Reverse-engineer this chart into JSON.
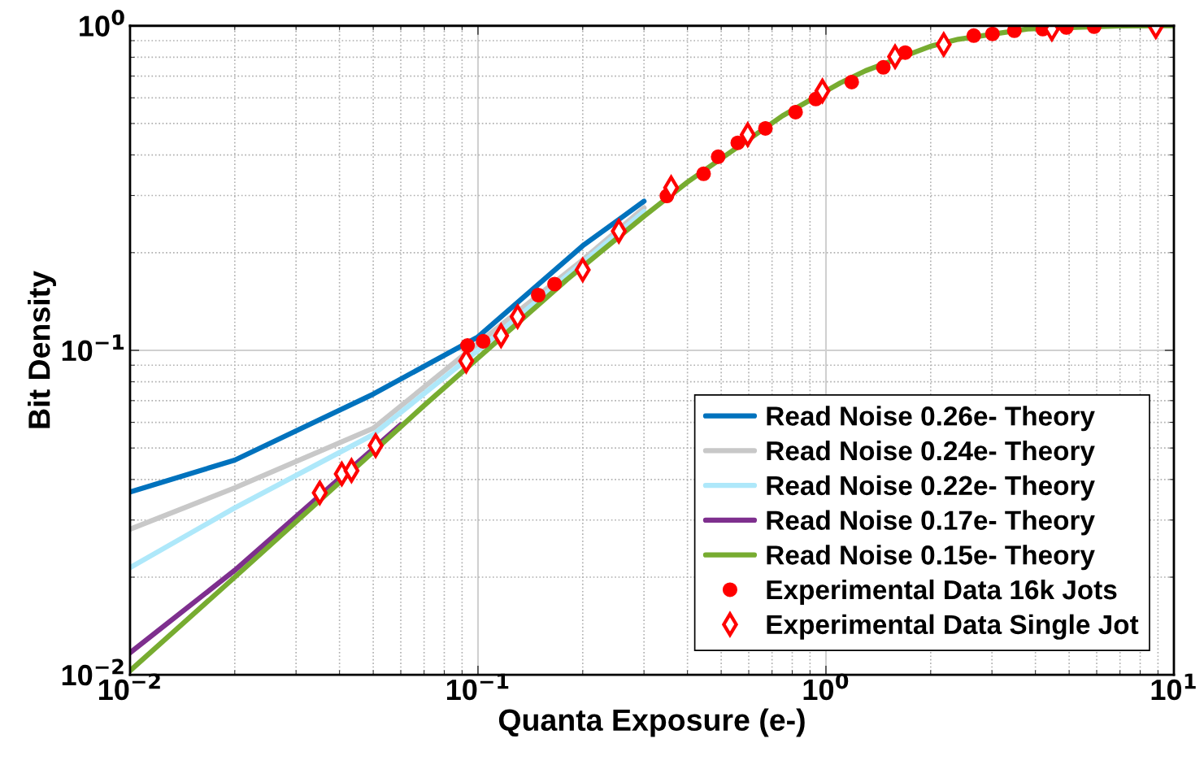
{
  "chart_data": {
    "type": "line",
    "xlabel": "Quanta Exposure (e-)",
    "ylabel": "Bit Density",
    "log": "xy",
    "grid": true,
    "legend": "bottom right",
    "xlim": [
      0.01,
      10
    ],
    "ylim": [
      0.01,
      1
    ],
    "xticks": [
      {
        "value": 0.01,
        "label": "10$^{−2}$"
      },
      {
        "value": 0.1,
        "label": "10$^{−1}$"
      },
      {
        "value": 1,
        "label": "10$^{0}$"
      },
      {
        "value": 10,
        "label": "10$^{1}$"
      }
    ],
    "yticks": [
      {
        "value": 0.01,
        "label": "10$^{−2}$"
      },
      {
        "value": 0.1,
        "label": "10$^{−1}$"
      },
      {
        "value": 1,
        "label": "10$^{0}$"
      }
    ],
    "series": [
      {
        "name": "Read Noise 0.26e- Theory",
        "marker": "none",
        "color": "#0072bd",
        "x": [
          0.01,
          0.02,
          0.05,
          0.1,
          0.2,
          0.3
        ],
        "values": [
          0.0366,
          0.0459,
          0.0733,
          0.11,
          0.21,
          0.288
        ]
      },
      {
        "name": "Read Noise 0.24e- Theory",
        "marker": "none",
        "color": "#c8c8c8",
        "x": [
          0.01,
          0.02,
          0.05,
          0.1,
          0.2,
          0.3
        ],
        "values": [
          0.0281,
          0.0377,
          0.0575,
          0.105,
          0.19,
          0.275
        ]
      },
      {
        "name": "Read Noise 0.22e- Theory",
        "marker": "none",
        "color": "#aee8fa",
        "x": [
          0.01,
          0.02,
          0.05,
          0.1,
          0.3
        ],
        "values": [
          0.0214,
          0.0327,
          0.055,
          0.1,
          0.268
        ]
      },
      {
        "name": "Read Noise 0.17e- Theory",
        "marker": "none",
        "color": "#7e2f8e",
        "x": [
          0.01,
          0.02,
          0.06
        ],
        "values": [
          0.0117,
          0.021,
          0.059
        ]
      },
      {
        "name": "Read Noise 0.15e- Theory",
        "marker": "none",
        "color": "#77ac30",
        "x": [
          0.01,
          0.02,
          0.03,
          0.07,
          0.18,
          0.3,
          0.4,
          0.75,
          1.1,
          1.3,
          2,
          2.4,
          3.8,
          7,
          10
        ],
        "values": [
          0.0103,
          0.02,
          0.0296,
          0.0676,
          0.165,
          0.259,
          0.33,
          0.528,
          0.667,
          0.727,
          0.865,
          0.909,
          0.978,
          0.999,
          1.0
        ]
      },
      {
        "name": "Experimental Data 16k Jots",
        "type": "scatter",
        "marker": "circle",
        "color": "#ff0000",
        "x": [
          0.0933,
          0.1035,
          0.149,
          0.166,
          0.349,
          0.445,
          0.49,
          0.558,
          0.67,
          0.818,
          0.935,
          1.186,
          1.462,
          1.69,
          2.66,
          3.01,
          3.48,
          4.2,
          4.91,
          5.9
        ],
        "values": [
          0.1035,
          0.1066,
          0.148,
          0.16,
          0.299,
          0.35,
          0.395,
          0.436,
          0.483,
          0.542,
          0.595,
          0.671,
          0.745,
          0.827,
          0.933,
          0.944,
          0.966,
          0.977,
          0.988,
          0.994
        ]
      },
      {
        "name": "Experimental Data Single Jot",
        "type": "scatter",
        "marker": "diamond",
        "color": "#ff0000",
        "x": [
          0.0351,
          0.0406,
          0.0433,
          0.0508,
          0.0925,
          0.1165,
          0.13,
          0.2,
          0.254,
          0.359,
          0.596,
          0.977,
          1.58,
          2.18,
          4.46,
          8.87
        ],
        "values": [
          0.0364,
          0.0416,
          0.0426,
          0.0509,
          0.0927,
          0.111,
          0.127,
          0.177,
          0.233,
          0.317,
          0.462,
          0.63,
          0.803,
          0.876,
          0.977,
          0.994
        ]
      }
    ]
  }
}
